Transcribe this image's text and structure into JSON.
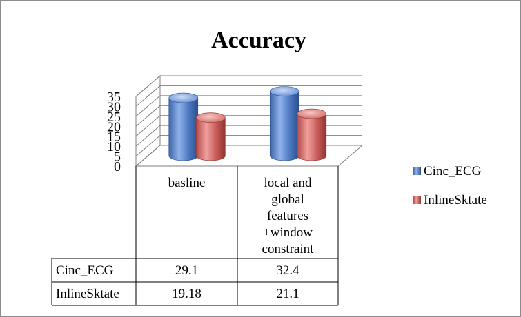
{
  "chart_data": {
    "type": "bar",
    "style": "3d-cylinder",
    "title": "Accuracy",
    "categories": [
      "basline",
      "local and global features +window constraint"
    ],
    "category_lines": [
      [
        "basline"
      ],
      [
        "local and",
        "global",
        "features",
        "+window",
        "constraint"
      ]
    ],
    "series": [
      {
        "name": "Cinc_ECG",
        "values": [
          29.1,
          32.4
        ],
        "value_labels": [
          "29.1",
          "32.4"
        ],
        "color": "#4f81bd"
      },
      {
        "name": "InlineSktate",
        "values": [
          19.18,
          21.1
        ],
        "value_labels": [
          "19.18",
          "21.1"
        ],
        "color": "#c0504d"
      }
    ],
    "ylim": [
      0,
      35
    ],
    "yticks": [
      0,
      5,
      10,
      15,
      20,
      25,
      30,
      35
    ],
    "grid": true,
    "legend_position": "right",
    "data_table": true
  }
}
